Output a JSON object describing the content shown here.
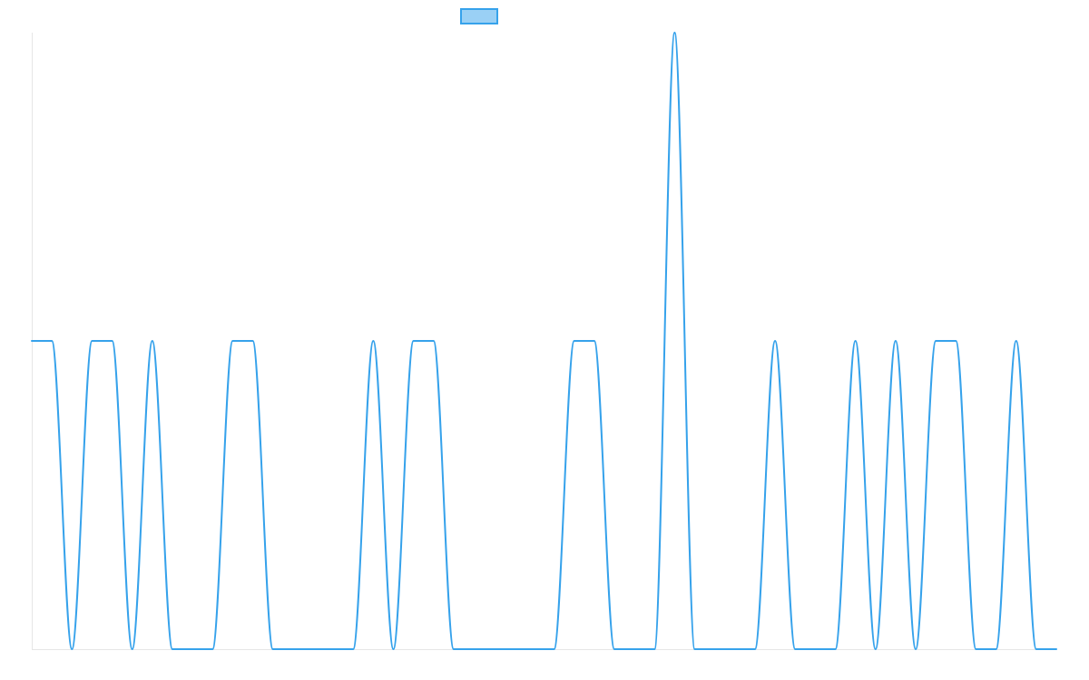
{
  "chart_data": {
    "type": "line",
    "title": "",
    "xlabel": "",
    "ylabel": "",
    "x": [
      0,
      1,
      2,
      3,
      4,
      5,
      6,
      7,
      8,
      9,
      10,
      11,
      12,
      13,
      14,
      15,
      16,
      17,
      18,
      19,
      20,
      21,
      22,
      23,
      24,
      25,
      26,
      27,
      28,
      29,
      30,
      31,
      32,
      33,
      34,
      35,
      36,
      37,
      38,
      39,
      40,
      41,
      42,
      43,
      44,
      45,
      46,
      47,
      48,
      49,
      50,
      51
    ],
    "ylim": [
      0,
      2
    ],
    "grid": false,
    "legend": "top-center",
    "series": [
      {
        "name": "",
        "color": "#36a2eb",
        "fill_color": "#9ad0f5",
        "values": [
          1,
          1,
          0,
          1,
          1,
          0,
          1,
          0,
          0,
          0,
          1,
          1,
          0,
          0,
          0,
          0,
          0,
          1,
          0,
          1,
          1,
          0,
          0,
          0,
          0,
          0,
          0,
          1,
          1,
          0,
          0,
          0,
          2,
          0,
          0,
          0,
          0,
          1,
          0,
          0,
          0,
          1,
          0,
          1,
          0,
          1,
          1,
          0,
          0,
          1,
          0,
          0
        ]
      }
    ]
  }
}
